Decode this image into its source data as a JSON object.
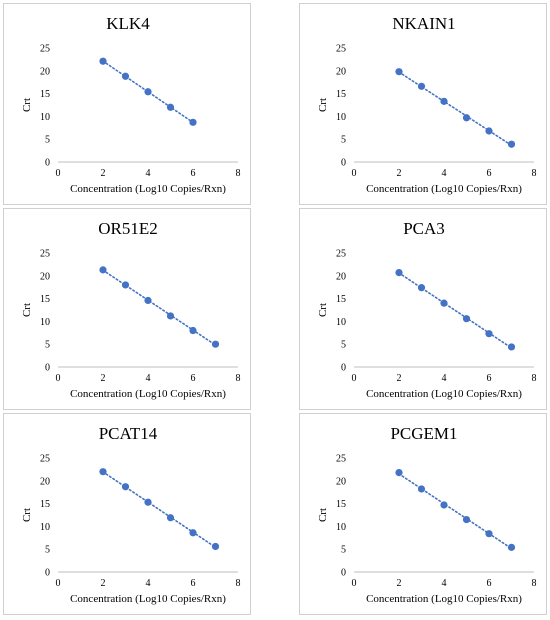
{
  "chart_data": [
    {
      "type": "scatter",
      "title": "KLK4",
      "xlabel": "Concentration (Log10 Copies/Rxn)",
      "ylabel": "Crt",
      "xlim": [
        0,
        8
      ],
      "ylim": [
        0,
        25
      ],
      "xticks": [
        "0",
        "2",
        "4",
        "6",
        "8"
      ],
      "yticks": [
        "0",
        "5",
        "10",
        "15",
        "20",
        "25"
      ],
      "trendline": "linear-dotted",
      "color": "#4472C4",
      "x": [
        2,
        3,
        4,
        5,
        6
      ],
      "y": [
        22.1,
        18.8,
        15.4,
        12.0,
        8.7
      ]
    },
    {
      "type": "scatter",
      "title": "NKAIN1",
      "xlabel": "Concentration (Log10 Copies/Rxn)",
      "ylabel": "Crt",
      "xlim": [
        0,
        8
      ],
      "ylim": [
        0,
        25
      ],
      "xticks": [
        "0",
        "2",
        "4",
        "6",
        "8"
      ],
      "yticks": [
        "0",
        "5",
        "10",
        "15",
        "20",
        "25"
      ],
      "trendline": "linear-dotted",
      "color": "#4472C4",
      "x": [
        2,
        3,
        4,
        5,
        6,
        7
      ],
      "y": [
        19.8,
        16.6,
        13.3,
        9.7,
        6.8,
        3.9
      ]
    },
    {
      "type": "scatter",
      "title": "OR51E2",
      "xlabel": "Concentration (Log10 Copies/Rxn)",
      "ylabel": "Crt",
      "xlim": [
        0,
        8
      ],
      "ylim": [
        0,
        25
      ],
      "xticks": [
        "0",
        "2",
        "4",
        "6",
        "8"
      ],
      "yticks": [
        "0",
        "5",
        "10",
        "15",
        "20",
        "25"
      ],
      "trendline": "linear-dotted",
      "color": "#4472C4",
      "x": [
        2,
        3,
        4,
        5,
        6,
        7
      ],
      "y": [
        21.3,
        18.0,
        14.6,
        11.2,
        8.0,
        5.0
      ]
    },
    {
      "type": "scatter",
      "title": "PCA3",
      "xlabel": "Concentration (Log10 Copies/Rxn)",
      "ylabel": "Crt",
      "xlim": [
        0,
        8
      ],
      "ylim": [
        0,
        25
      ],
      "xticks": [
        "0",
        "2",
        "4",
        "6",
        "8"
      ],
      "yticks": [
        "0",
        "5",
        "10",
        "15",
        "20",
        "25"
      ],
      "trendline": "linear-dotted",
      "color": "#4472C4",
      "x": [
        2,
        3,
        4,
        5,
        6,
        7
      ],
      "y": [
        20.7,
        17.4,
        14.0,
        10.6,
        7.3,
        4.4
      ]
    },
    {
      "type": "scatter",
      "title": "PCAT14",
      "xlabel": "Concentration (Log10 Copies/Rxn)",
      "ylabel": "Crt",
      "xlim": [
        0,
        8
      ],
      "ylim": [
        0,
        25
      ],
      "xticks": [
        "0",
        "2",
        "4",
        "6",
        "8"
      ],
      "yticks": [
        "0",
        "5",
        "10",
        "15",
        "20",
        "25"
      ],
      "trendline": "linear-dotted",
      "color": "#4472C4",
      "x": [
        2,
        3,
        4,
        5,
        6,
        7
      ],
      "y": [
        22.0,
        18.7,
        15.3,
        11.9,
        8.6,
        5.6
      ]
    },
    {
      "type": "scatter",
      "title": "PCGEM1",
      "xlabel": "Concentration (Log10 Copies/Rxn)",
      "ylabel": "Crt",
      "xlim": [
        0,
        8
      ],
      "ylim": [
        0,
        25
      ],
      "xticks": [
        "0",
        "2",
        "4",
        "6",
        "8"
      ],
      "yticks": [
        "0",
        "5",
        "10",
        "15",
        "20",
        "25"
      ],
      "trendline": "linear-dotted",
      "color": "#4472C4",
      "x": [
        2,
        3,
        4,
        5,
        6,
        7
      ],
      "y": [
        21.8,
        18.2,
        14.7,
        11.5,
        8.4,
        5.4
      ]
    }
  ]
}
